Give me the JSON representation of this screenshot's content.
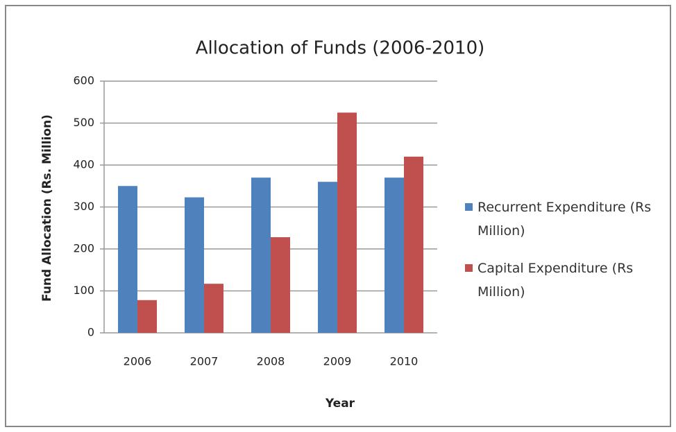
{
  "chart_data": {
    "type": "bar",
    "title": "Allocation of Funds (2006-2010)",
    "x_label": "Year",
    "y_label": "Fund Allocation (Rs. Million)",
    "categories": [
      "2006",
      "2007",
      "2008",
      "2009",
      "2010"
    ],
    "series": [
      {
        "name": "Recurrent Expenditure (Rs Million)",
        "color": "#4f81bd",
        "values": [
          350,
          323,
          370,
          360,
          370
        ]
      },
      {
        "name": "Capital Expenditure (Rs Million)",
        "color": "#c0504d",
        "values": [
          78,
          117,
          228,
          525,
          420
        ]
      }
    ],
    "ylim": [
      0,
      600
    ],
    "yticks": [
      0,
      100,
      200,
      300,
      400,
      500,
      600
    ],
    "grid": true,
    "legend": "right"
  }
}
